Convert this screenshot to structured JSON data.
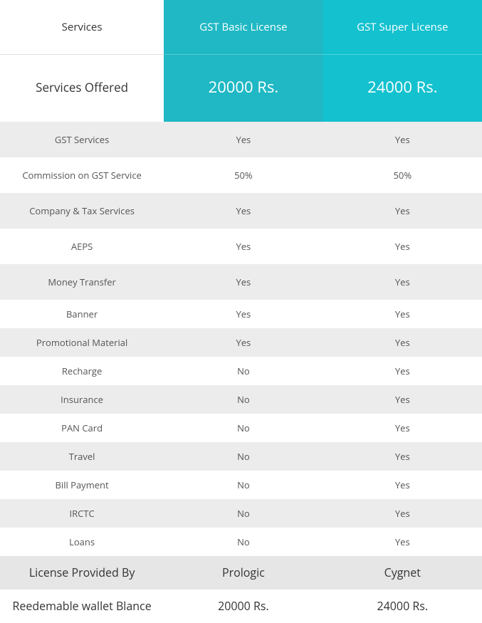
{
  "colors": {
    "teal_a": "#1fb8c4",
    "teal_b": "#13c1cf",
    "grey_row": "#ececec",
    "white": "#ffffff",
    "footer_grey": "#e6e6e6",
    "text_dark": "#333333",
    "text_body": "#555555"
  },
  "header": {
    "services_label": "Services",
    "offered_label": "Services Offered",
    "plans": [
      {
        "title": "GST Basic License",
        "price": "20000 Rs."
      },
      {
        "title": "GST Super License",
        "price": "24000 Rs."
      }
    ]
  },
  "rows": [
    {
      "label": "GST Services",
      "size": "big",
      "values": [
        "Yes",
        "Yes"
      ]
    },
    {
      "label": "Commission on GST Service",
      "size": "big",
      "values": [
        "50%",
        "50%"
      ]
    },
    {
      "label": "Company & Tax Services",
      "size": "big",
      "values": [
        "Yes",
        "Yes"
      ]
    },
    {
      "label": "AEPS",
      "size": "big",
      "values": [
        "Yes",
        "Yes"
      ]
    },
    {
      "label": "Money Transfer",
      "size": "big",
      "values": [
        "Yes",
        "Yes"
      ]
    },
    {
      "label": "Banner",
      "size": "small",
      "values": [
        "Yes",
        "Yes"
      ]
    },
    {
      "label": "Promotional Material",
      "size": "small",
      "values": [
        "Yes",
        "Yes"
      ]
    },
    {
      "label": "Recharge",
      "size": "small",
      "values": [
        "No",
        "Yes"
      ]
    },
    {
      "label": "Insurance",
      "size": "small",
      "values": [
        "No",
        "Yes"
      ]
    },
    {
      "label": "PAN Card",
      "size": "small",
      "values": [
        "No",
        "Yes"
      ]
    },
    {
      "label": "Travel",
      "size": "small",
      "values": [
        "No",
        "Yes"
      ]
    },
    {
      "label": "Bill Payment",
      "size": "small",
      "values": [
        "No",
        "Yes"
      ]
    },
    {
      "label": "IRCTC",
      "size": "small",
      "values": [
        "No",
        "Yes"
      ]
    },
    {
      "label": "Loans",
      "size": "small",
      "values": [
        "No",
        "Yes"
      ]
    }
  ],
  "footer": [
    {
      "label": "License Provided By",
      "values": [
        "Prologic",
        "Cygnet"
      ]
    },
    {
      "label": "Reedemable wallet Blance",
      "values": [
        "20000 Rs.",
        "24000 Rs."
      ]
    }
  ]
}
